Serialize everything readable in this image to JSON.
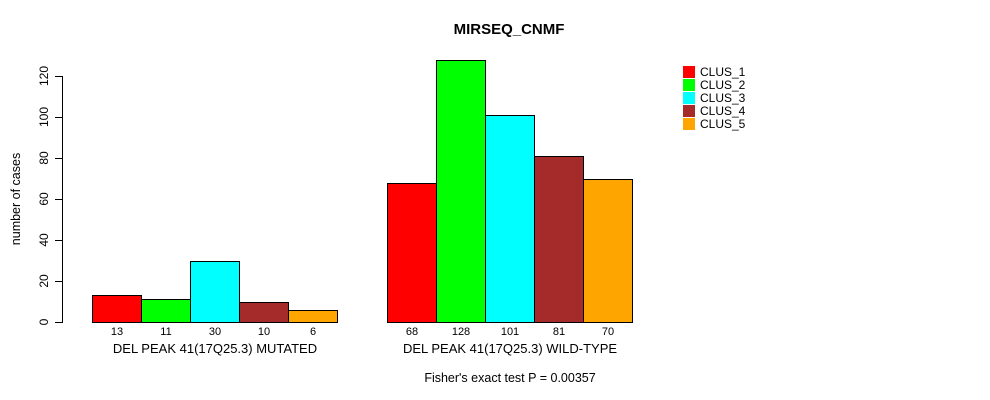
{
  "chart_data": {
    "type": "bar",
    "title": "MIRSEQ_CNMF",
    "xlabel": "",
    "ylabel": "number of cases",
    "categories": [
      "DEL PEAK 41(17Q25.3) MUTATED",
      "DEL PEAK 41(17Q25.3) WILD-TYPE"
    ],
    "series": [
      {
        "name": "CLUS_1",
        "color": "#FF0000",
        "values": [
          13,
          68
        ]
      },
      {
        "name": "CLUS_2",
        "color": "#00FF00",
        "values": [
          11,
          128
        ]
      },
      {
        "name": "CLUS_3",
        "color": "#00FFFF",
        "values": [
          30,
          101
        ]
      },
      {
        "name": "CLUS_4",
        "color": "#A52A2A",
        "values": [
          10,
          81
        ]
      },
      {
        "name": "CLUS_5",
        "color": "#FFA500",
        "values": [
          6,
          70
        ]
      }
    ],
    "ylim": [
      0,
      120
    ],
    "yticks": [
      0,
      20,
      40,
      60,
      80,
      100,
      120
    ],
    "bar_value_labels": true,
    "annotation": "Fisher's exact test P = 0.00357",
    "legend_position": "right",
    "grid": false,
    "axis_color": "#000000",
    "bar_border_color": "#000000"
  }
}
